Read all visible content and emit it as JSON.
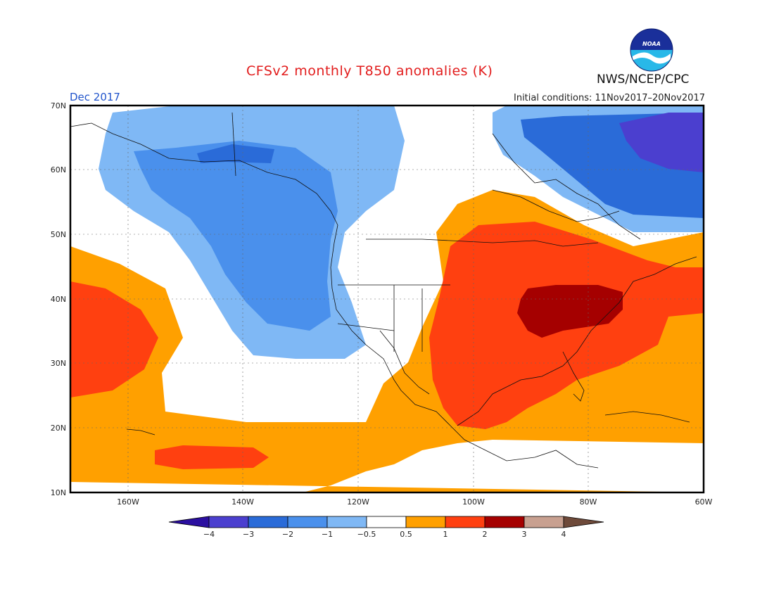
{
  "header": {
    "title": "CFSv2 monthly T850 anomalies (K)",
    "month": "Dec 2017",
    "initial_conditions": "Initial conditions: 11Nov2017–20Nov2017",
    "agency": "NWS/NCEP/CPC",
    "logo_text": "NOAA"
  },
  "map": {
    "lat_labels": [
      "70N",
      "60N",
      "50N",
      "40N",
      "30N",
      "20N",
      "10N"
    ],
    "lon_labels": [
      "160W",
      "140W",
      "120W",
      "100W",
      "80W",
      "60W"
    ],
    "extent": {
      "lon": [
        -170,
        -60
      ],
      "lat": [
        10,
        70
      ]
    }
  },
  "colorbar": {
    "labels": [
      "−4",
      "−3",
      "−2",
      "−1",
      "−0.5",
      "0.5",
      "1",
      "2",
      "3",
      "4"
    ],
    "colors": [
      "#2b0fa0",
      "#4b3fcf",
      "#2a6bd8",
      "#4a90ec",
      "#7fb8f5",
      "#ffffff",
      "#ffa000",
      "#ff4010",
      "#a50000",
      "#c8a090",
      "#6e4a3a"
    ]
  }
}
